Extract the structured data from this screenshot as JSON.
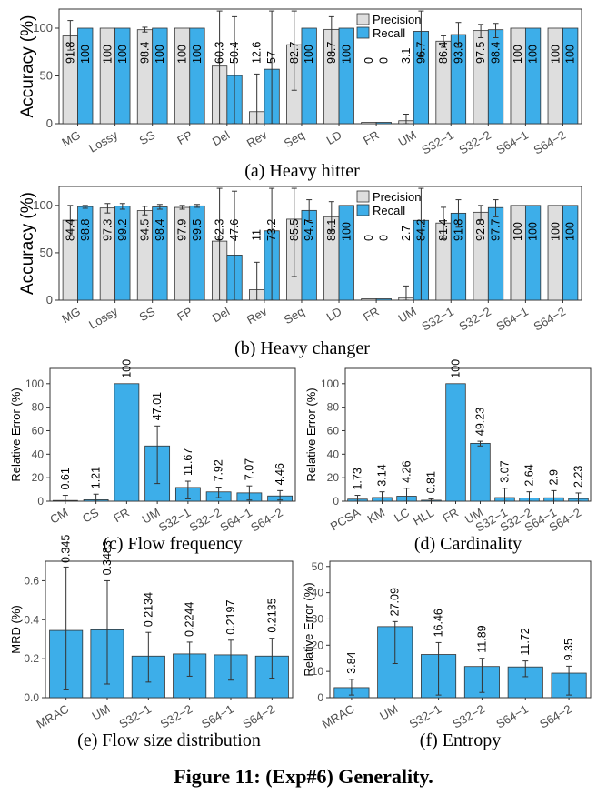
{
  "figure_caption": "Figure 11: (Exp#6) Generality.",
  "colors": {
    "precision": "#dedede",
    "recall": "#3daee9",
    "single": "#3daee9"
  },
  "chart_data": [
    {
      "id": "a",
      "type": "bar",
      "caption": "(a) Heavy hitter",
      "ylabel": "Accuracy (%)",
      "ylim": [
        0,
        100
      ],
      "yticks": [
        0,
        50,
        100
      ],
      "legend": {
        "position": "top",
        "entries": [
          "Precision",
          "Recall"
        ]
      },
      "categories": [
        "MG",
        "Lossy",
        "SS",
        "FP",
        "Del",
        "Rev",
        "Seq",
        "LD",
        "FR",
        "UM",
        "S32−1",
        "S32−2",
        "S64−1",
        "S64−2"
      ],
      "series": [
        {
          "name": "Precision",
          "values": [
            91.8,
            100,
            98.4,
            100,
            60.3,
            12.6,
            82.7,
            98.7,
            0,
            3.1,
            86.4,
            97.5,
            100,
            100
          ],
          "labels": [
            "91.8",
            "100",
            "98.4",
            "100",
            "60.3",
            "12.6",
            "82.7",
            "98.7",
            "0",
            "3.1",
            "86.4",
            "97.5",
            "100",
            "100"
          ],
          "err": [
            [
              77,
              108
            ],
            null,
            [
              96,
              101
            ],
            null,
            [
              0,
              118
            ],
            [
              0,
              52
            ],
            [
              35,
              118
            ],
            [
              75,
              112
            ],
            null,
            [
              0,
              10
            ],
            [
              80,
              92
            ],
            [
              90,
              104
            ],
            null,
            null
          ]
        },
        {
          "name": "Recall",
          "values": [
            100,
            100,
            100,
            100,
            50.4,
            57,
            100,
            100,
            0,
            96.7,
            93.3,
            98.4,
            100,
            100
          ],
          "labels": [
            "100",
            "100",
            "100",
            "100",
            "50.4",
            "57",
            "100",
            "100",
            "0",
            "96.7",
            "93.3",
            "98.4",
            "100",
            "100"
          ],
          "err": [
            null,
            null,
            null,
            null,
            [
              0,
              112
            ],
            [
              0,
              118
            ],
            null,
            null,
            null,
            [
              70,
              118
            ],
            [
              80,
              106
            ],
            [
              90,
              105
            ],
            null,
            null
          ]
        }
      ]
    },
    {
      "id": "b",
      "type": "bar",
      "caption": "(b) Heavy changer",
      "ylabel": "Accuracy (%)",
      "ylim": [
        0,
        100
      ],
      "yticks": [
        0,
        50,
        100
      ],
      "legend": {
        "position": "top",
        "entries": [
          "Precision",
          "Recall"
        ]
      },
      "categories": [
        "MG",
        "Lossy",
        "SS",
        "FP",
        "Del",
        "Rev",
        "Seq",
        "LD",
        "FR",
        "UM",
        "S32−1",
        "S32−2",
        "S64−1",
        "S64−2"
      ],
      "series": [
        {
          "name": "Precision",
          "values": [
            84.4,
            97.3,
            94.5,
            97.9,
            62.3,
            11,
            85.5,
            88.1,
            0,
            2.7,
            81.4,
            92.8,
            100,
            100
          ],
          "labels": [
            "84.4",
            "97.3",
            "94.5",
            "97.9",
            "62.3",
            "11",
            "85.5",
            "88.1",
            "0",
            "2.7",
            "81.4",
            "92.8",
            "100",
            "100"
          ],
          "err": [
            [
              68,
              100
            ],
            [
              92,
              102
            ],
            [
              90,
              99
            ],
            [
              96,
              100
            ],
            [
              0,
              118
            ],
            [
              0,
              40
            ],
            [
              25,
              118
            ],
            [
              73,
              104
            ],
            null,
            [
              0,
              15
            ],
            [
              65,
              98
            ],
            [
              85,
              100
            ],
            null,
            null
          ]
        },
        {
          "name": "Recall",
          "values": [
            98.8,
            99.2,
            98.4,
            99.5,
            47.6,
            73.2,
            94.7,
            100,
            0,
            84.2,
            91.8,
            97.7,
            100,
            100
          ],
          "labels": [
            "98.8",
            "99.2",
            "98.4",
            "99.5",
            "47.6",
            "73.2",
            "94.7",
            "100",
            "0",
            "84.2",
            "91.8",
            "97.7",
            "100",
            "100"
          ],
          "err": [
            [
              97,
              100
            ],
            [
              96,
              102
            ],
            [
              96,
              101
            ],
            [
              98,
              101
            ],
            [
              0,
              115
            ],
            [
              0,
              118
            ],
            [
              84,
              106
            ],
            null,
            null,
            [
              0,
              118
            ],
            [
              77,
              106
            ],
            [
              88,
              106
            ],
            null,
            null
          ]
        }
      ]
    },
    {
      "id": "c",
      "type": "bar",
      "caption": "(c) Flow frequency",
      "ylabel": "Relative Error (%)",
      "ylim": [
        0,
        100
      ],
      "yticks": [
        0,
        20,
        40,
        60,
        80,
        100
      ],
      "categories": [
        "CM",
        "CS",
        "FR",
        "UM",
        "S32−1",
        "S32−2",
        "S64−1",
        "S64−2"
      ],
      "series": [
        {
          "values": [
            0.61,
            1.21,
            100,
            47.01,
            11.67,
            7.92,
            7.07,
            4.46
          ],
          "labels": [
            "0.61",
            "1.21",
            "100",
            "47.01",
            "11.67",
            "7.92",
            "7.07",
            "4.46"
          ],
          "err": [
            [
              0,
              5
            ],
            [
              0,
              6
            ],
            null,
            [
              15,
              64
            ],
            [
              2,
              17
            ],
            [
              3,
              12
            ],
            [
              1,
              13
            ],
            [
              1,
              9
            ]
          ]
        }
      ]
    },
    {
      "id": "d",
      "type": "bar",
      "caption": "(d) Cardinality",
      "ylabel": "Relative Error (%)",
      "ylim": [
        0,
        100
      ],
      "yticks": [
        0,
        20,
        40,
        60,
        80,
        100
      ],
      "categories": [
        "PCSA",
        "KM",
        "LC",
        "HLL",
        "FR",
        "UM",
        "S32−1",
        "S32−2",
        "S64−1",
        "S64−2"
      ],
      "series": [
        {
          "values": [
            1.73,
            3.14,
            4.26,
            0.81,
            100,
            49.23,
            3.07,
            2.64,
            2.9,
            2.23
          ],
          "labels": [
            "1.73",
            "3.14",
            "4.26",
            "0.81",
            "100",
            "49.23",
            "3.07",
            "2.64",
            "2.9",
            "2.23"
          ],
          "err": [
            [
              0,
              5
            ],
            [
              0,
              8
            ],
            [
              0,
              11
            ],
            [
              0,
              2
            ],
            null,
            [
              47,
              51
            ],
            [
              0,
              11
            ],
            [
              0,
              8
            ],
            [
              0,
              9
            ],
            [
              0,
              7
            ]
          ]
        }
      ]
    },
    {
      "id": "e",
      "type": "bar",
      "caption": "(e) Flow size distribution",
      "ylabel": "MRD (%)",
      "ylim": [
        0,
        0.7
      ],
      "yticks": [
        0,
        0.2,
        0.4,
        0.6
      ],
      "ytick_labels": [
        "0.0",
        "0.2",
        "0.4",
        "0.6"
      ],
      "categories": [
        "MRAC",
        "UM",
        "S32−1",
        "S32−2",
        "S64−1",
        "S64−2"
      ],
      "series": [
        {
          "values": [
            0.345,
            0.3483,
            0.2134,
            0.2244,
            0.2197,
            0.2135
          ],
          "labels": [
            "0.345",
            "0.3483",
            "0.2134",
            "0.2244",
            "0.2197",
            "0.2135"
          ],
          "err": [
            [
              0.04,
              0.67
            ],
            [
              0.07,
              0.6
            ],
            [
              0.08,
              0.335
            ],
            [
              0.11,
              0.285
            ],
            [
              0.09,
              0.295
            ],
            [
              0.1,
              0.305
            ]
          ]
        }
      ]
    },
    {
      "id": "f",
      "type": "bar",
      "caption": "(f) Entropy",
      "ylabel": "Relative Error (%)",
      "ylim": [
        0,
        50
      ],
      "yticks": [
        0,
        10,
        20,
        30,
        40,
        50
      ],
      "categories": [
        "MRAC",
        "UM",
        "S32−1",
        "S32−2",
        "S64−1",
        "S64−2"
      ],
      "series": [
        {
          "values": [
            3.84,
            27.09,
            16.46,
            11.89,
            11.72,
            9.35
          ],
          "labels": [
            "3.84",
            "27.09",
            "16.46",
            "11.89",
            "11.72",
            "9.35"
          ],
          "err": [
            [
              1,
              7
            ],
            [
              13,
              29
            ],
            [
              1,
              21
            ],
            [
              2,
              15
            ],
            [
              8,
              14
            ],
            [
              1,
              12
            ]
          ]
        }
      ]
    }
  ]
}
